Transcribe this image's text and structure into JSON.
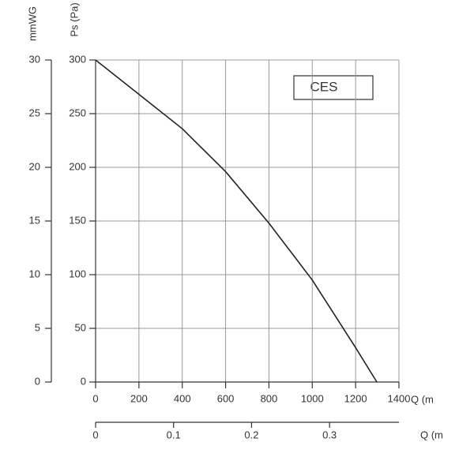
{
  "chart_data": {
    "type": "line",
    "y_title": "Ps (Pa)",
    "y2_title": "mmWG",
    "x_title": "Q (m",
    "x2_title": "Q (m",
    "x": [
      0,
      200,
      400,
      600,
      800,
      1000,
      1200,
      1298
    ],
    "series": [
      {
        "name": "CES",
        "color": "#222222",
        "values": [
          300,
          268,
          236,
          196,
          148,
          95,
          32,
          0
        ]
      }
    ],
    "xlim": [
      0,
      1400
    ],
    "xticks": [
      0,
      200,
      400,
      600,
      800,
      1000,
      1200,
      1400
    ],
    "ylim": [
      0,
      300
    ],
    "yticks": [
      0,
      50,
      100,
      150,
      200,
      250,
      300
    ],
    "y2lim": [
      0,
      30
    ],
    "y2ticks": [
      0,
      5,
      10,
      15,
      20,
      25,
      30
    ],
    "x2lim": [
      0,
      0.389
    ],
    "x2ticks": [
      0,
      0.1,
      0.2,
      0.3
    ],
    "grid": true
  }
}
